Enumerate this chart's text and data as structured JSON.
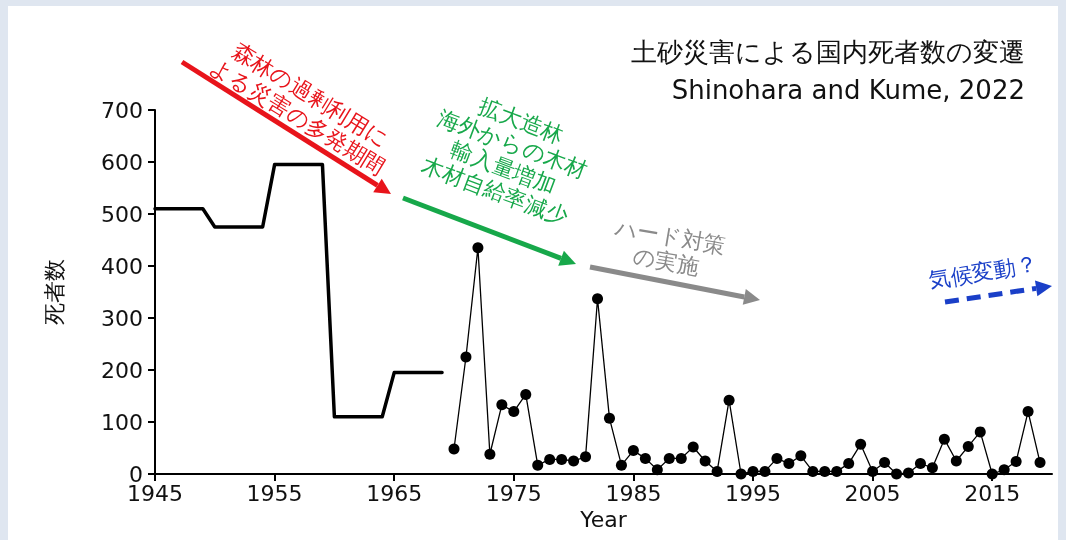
{
  "chart_data": {
    "type": "line",
    "title": "土砂災害による国内死者数の変遷",
    "subtitle": "Shinohara and Kume, 2022",
    "xlabel": "Year",
    "ylabel": "死者数",
    "xlim": [
      1945,
      2020
    ],
    "xticks": [
      1945,
      1955,
      1965,
      1975,
      1985,
      1995,
      2005,
      2015
    ],
    "ylim": [
      0,
      700
    ],
    "yticks": [
      0,
      100,
      200,
      300,
      400,
      500,
      600,
      700
    ],
    "grid": false,
    "marker": "circle",
    "line_style": "solid",
    "series": [
      {
        "color": "#000000",
        "marker": "none",
        "x": [
          1945,
          1949,
          1950,
          1954,
          1955,
          1959,
          1960,
          1964,
          1965,
          1969
        ],
        "values": [
          510,
          510,
          475,
          475,
          595,
          595,
          110,
          110,
          195,
          195
        ]
      },
      {
        "color": "#000000",
        "x": [
          1970,
          1971,
          1972,
          1973,
          1974,
          1975,
          1976,
          1977,
          1978,
          1979,
          1980,
          1981,
          1982,
          1983,
          1984,
          1985,
          1986,
          1987,
          1988,
          1989,
          1990,
          1991,
          1992,
          1993,
          1994,
          1995,
          1996,
          1997,
          1998,
          1999,
          2000,
          2001,
          2002,
          2003,
          2004,
          2005,
          2006,
          2007,
          2008,
          2009,
          2010,
          2011,
          2012,
          2013,
          2014,
          2015,
          2016,
          2017,
          2018,
          2019
        ],
        "values": [
          48,
          225,
          435,
          38,
          133,
          120,
          153,
          17,
          28,
          28,
          25,
          33,
          337,
          107,
          17,
          45,
          30,
          8,
          30,
          30,
          52,
          25,
          5,
          142,
          0,
          5,
          5,
          30,
          20,
          35,
          5,
          5,
          5,
          20,
          57,
          5,
          22,
          0,
          2,
          20,
          12,
          67,
          25,
          53,
          81,
          0,
          8,
          24,
          120,
          22
        ]
      }
    ],
    "annotations": [
      "森林の過剰利用に\nよる災害の多発期間",
      "拡大造林\n海外からの木材\n輸入量増加\n木材自給率減少",
      "ハード対策\nの実施",
      "気候変動？"
    ]
  }
}
